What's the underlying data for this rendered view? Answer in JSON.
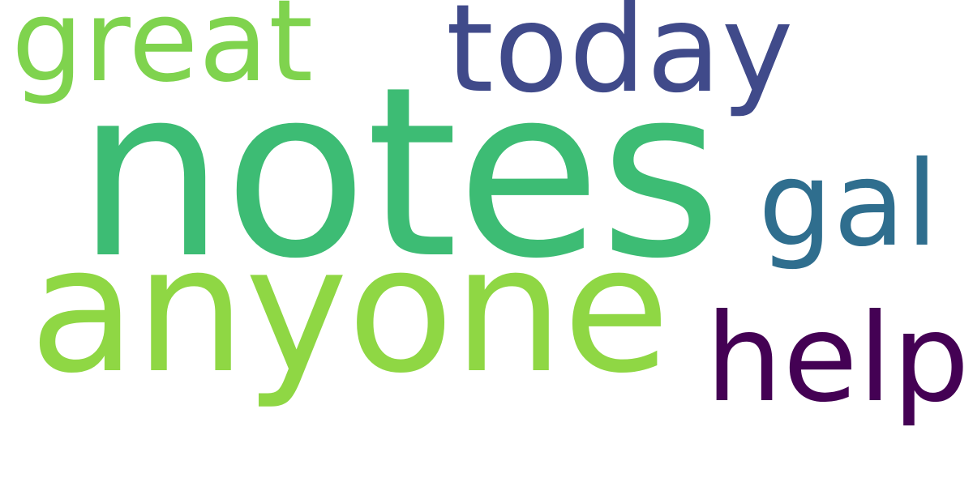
{
  "words": [
    {
      "text": "great",
      "color": "#7fd34e"
    },
    {
      "text": "today",
      "color": "#404a8a"
    },
    {
      "text": "notes",
      "color": "#3dbc74"
    },
    {
      "text": "gal",
      "color": "#2f6e8e"
    },
    {
      "text": "anyone",
      "color": "#8fd744"
    },
    {
      "text": "help",
      "color": "#440154"
    }
  ]
}
